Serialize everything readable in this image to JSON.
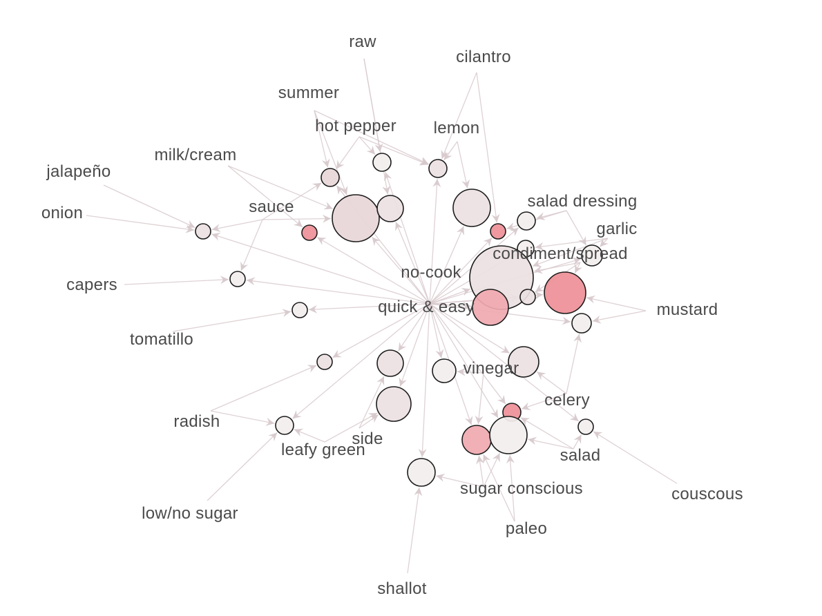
{
  "labels": {
    "raw": "raw",
    "cilantro": "cilantro",
    "summer": "summer",
    "hot_pepper": "hot pepper",
    "lemon": "lemon",
    "milk_cream": "milk/cream",
    "jalapeno": "jalapeño",
    "salad_dressing": "salad dressing",
    "onion": "onion",
    "sauce": "sauce",
    "garlic": "garlic",
    "condiment_spread": "condiment/spread",
    "no_cook": "no-cook",
    "capers": "capers",
    "quick_easy": "quick & easy",
    "mustard": "mustard",
    "tomatillo": "tomatillo",
    "vinegar": "vinegar",
    "celery": "celery",
    "radish": "radish",
    "side": "side",
    "leafy_green": "leafy green",
    "salad": "salad",
    "couscous": "couscous",
    "sugar_conscious": "sugar conscious",
    "low_no_sugar": "low/no sugar",
    "paleo": "paleo",
    "shallot": "shallot"
  },
  "colors": {
    "edge": "#d8c9cc",
    "node_stroke": "#1c1c1c",
    "label_text": "#4a4a4a",
    "node_pale": "#f3eeee",
    "node_light": "#ece1e2",
    "node_mid": "#e8d6d8",
    "node_pink": "#f0a9b0",
    "node_red": "#ee8f97"
  }
}
